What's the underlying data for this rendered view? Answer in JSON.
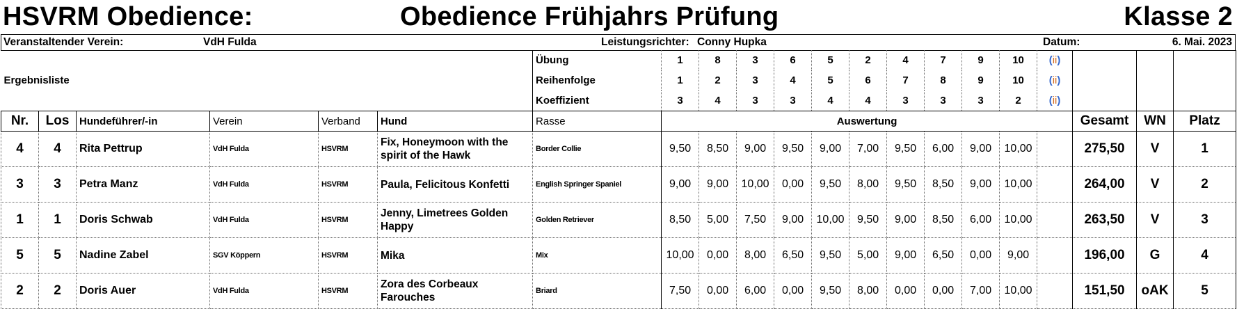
{
  "header": {
    "left_title": "HSVRM Obedience:",
    "event_title": "Obedience Frühjahrs Prüfung",
    "class_title": "Klasse 2"
  },
  "info": {
    "club_label": "Veranstaltender Verein:",
    "club_value": "VdH Fulda",
    "judge_label": "Leistungsrichter:",
    "judge_value": "Conny Hupka",
    "date_label": "Datum:",
    "date_value": "6. Mai. 2023"
  },
  "list_title": "Ergebnisliste",
  "exercise_block": {
    "labels": [
      "Übung",
      "Reihenfolge",
      "Koeffizient"
    ],
    "uebung": [
      "1",
      "8",
      "3",
      "6",
      "5",
      "2",
      "4",
      "7",
      "9",
      "10"
    ],
    "reihenfolge": [
      "1",
      "2",
      "3",
      "4",
      "5",
      "6",
      "7",
      "8",
      "9",
      "10"
    ],
    "koeffizient": [
      "3",
      "4",
      "3",
      "3",
      "4",
      "4",
      "3",
      "3",
      "3",
      "2"
    ],
    "extra_icon": "small-bracket-glyph-icon"
  },
  "columns": {
    "nr": "Nr.",
    "los": "Los",
    "handler": "Hundeführer/-in",
    "verein": "Verein",
    "verband": "Verband",
    "hund": "Hund",
    "rasse": "Rasse",
    "auswertung": "Auswertung",
    "gesamt": "Gesamt",
    "wn": "WN",
    "platz": "Platz"
  },
  "rows": [
    {
      "nr": "4",
      "los": "4",
      "handler": "Rita Pettrup",
      "verein": "VdH Fulda",
      "verband": "HSVRM",
      "hund": "Fix, Honeymoon with the spirit of the Hawk",
      "rasse": "Border Collie",
      "scores": [
        "9,50",
        "8,50",
        "9,00",
        "9,50",
        "9,00",
        "7,00",
        "9,50",
        "6,00",
        "9,00",
        "10,00"
      ],
      "gesamt": "275,50",
      "wn": "V",
      "platz": "1"
    },
    {
      "nr": "3",
      "los": "3",
      "handler": "Petra Manz",
      "verein": "VdH Fulda",
      "verband": "HSVRM",
      "hund": "Paula, Felicitous Konfetti",
      "rasse": "English Springer Spaniel",
      "scores": [
        "9,00",
        "9,00",
        "10,00",
        "0,00",
        "9,50",
        "8,00",
        "9,50",
        "8,50",
        "9,00",
        "10,00"
      ],
      "gesamt": "264,00",
      "wn": "V",
      "platz": "2"
    },
    {
      "nr": "1",
      "los": "1",
      "handler": "Doris Schwab",
      "verein": "VdH Fulda",
      "verband": "HSVRM",
      "hund": "Jenny, Limetrees Golden Happy",
      "rasse": "Golden Retriever",
      "scores": [
        "8,50",
        "5,00",
        "7,50",
        "9,00",
        "10,00",
        "9,50",
        "9,00",
        "8,50",
        "6,00",
        "10,00"
      ],
      "gesamt": "263,50",
      "wn": "V",
      "platz": "3"
    },
    {
      "nr": "5",
      "los": "5",
      "handler": "Nadine Zabel",
      "verein": "SGV Köppern",
      "verband": "HSVRM",
      "hund": "Mika",
      "rasse": "Mix",
      "scores": [
        "10,00",
        "0,00",
        "8,00",
        "6,50",
        "9,50",
        "5,00",
        "9,00",
        "6,50",
        "0,00",
        "9,00"
      ],
      "gesamt": "196,00",
      "wn": "G",
      "platz": "4"
    },
    {
      "nr": "2",
      "los": "2",
      "handler": "Doris Auer",
      "verein": "VdH Fulda",
      "verband": "HSVRM",
      "hund": "Zora des Corbeaux Farouches",
      "rasse": "Briard",
      "scores": [
        "7,50",
        "0,00",
        "6,00",
        "0,00",
        "9,50",
        "8,00",
        "0,00",
        "0,00",
        "7,00",
        "10,00"
      ],
      "gesamt": "151,50",
      "wn": "oAK",
      "platz": "5"
    }
  ]
}
